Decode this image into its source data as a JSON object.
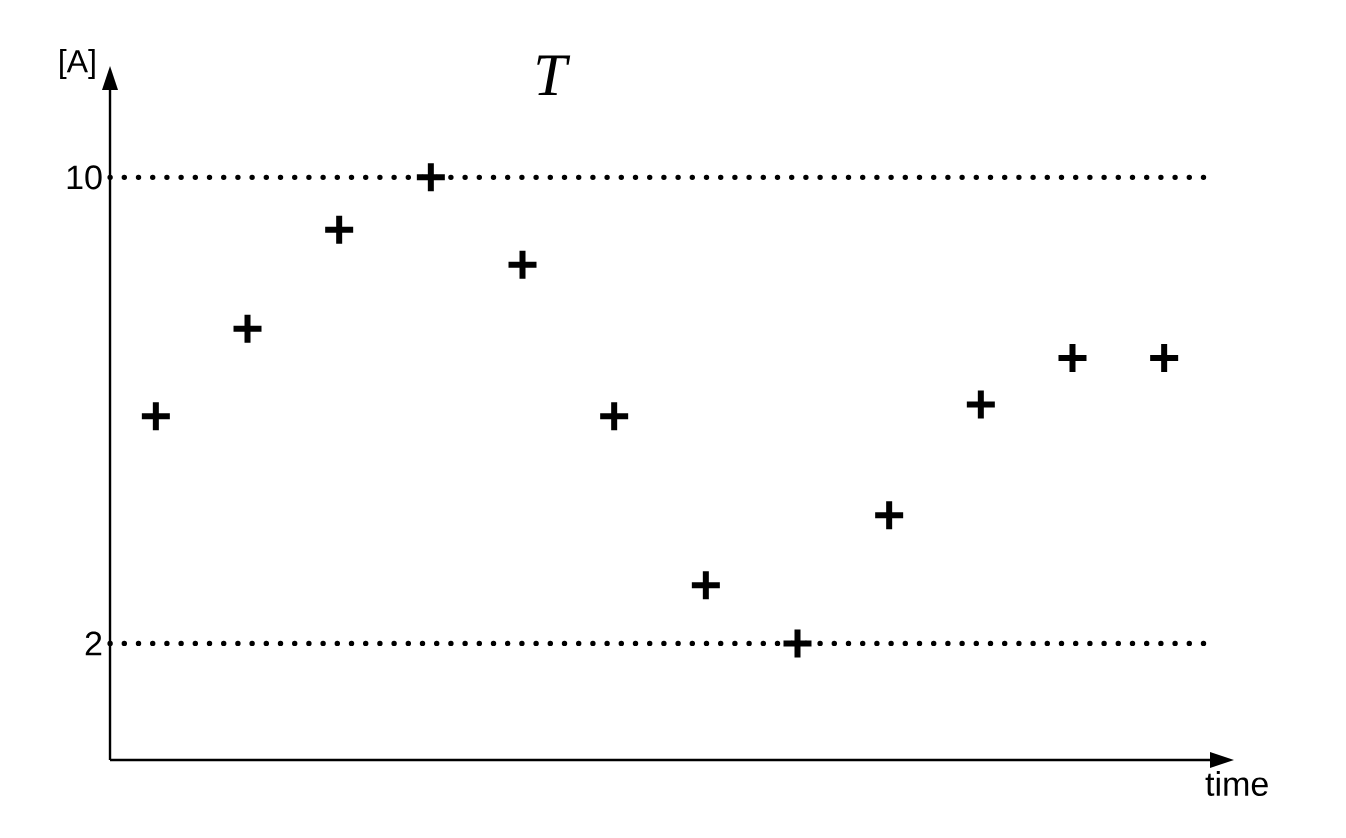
{
  "chart_data": {
    "type": "scatter",
    "title": "T",
    "ylabel": "[A]",
    "xlabel": "time",
    "categories": [
      null,
      null,
      null,
      null,
      null,
      null,
      null,
      null,
      null,
      null,
      null,
      null
    ],
    "values": [
      5.9,
      7.4,
      9.1,
      10,
      8.5,
      5.9,
      3.0,
      2.0,
      4.2,
      6.1,
      6.9,
      6.9
    ],
    "color": "#000000",
    "marker": "cross",
    "ylim": [
      0,
      11.5
    ],
    "yticks": [
      2,
      10
    ],
    "tick_labels": "y",
    "ref_lines": [
      {
        "axis": "y",
        "value": 10,
        "color": "#000000",
        "line_style": "dotted"
      },
      {
        "axis": "y",
        "value": 2,
        "color": "#000000",
        "line_style": "dotted"
      }
    ]
  }
}
